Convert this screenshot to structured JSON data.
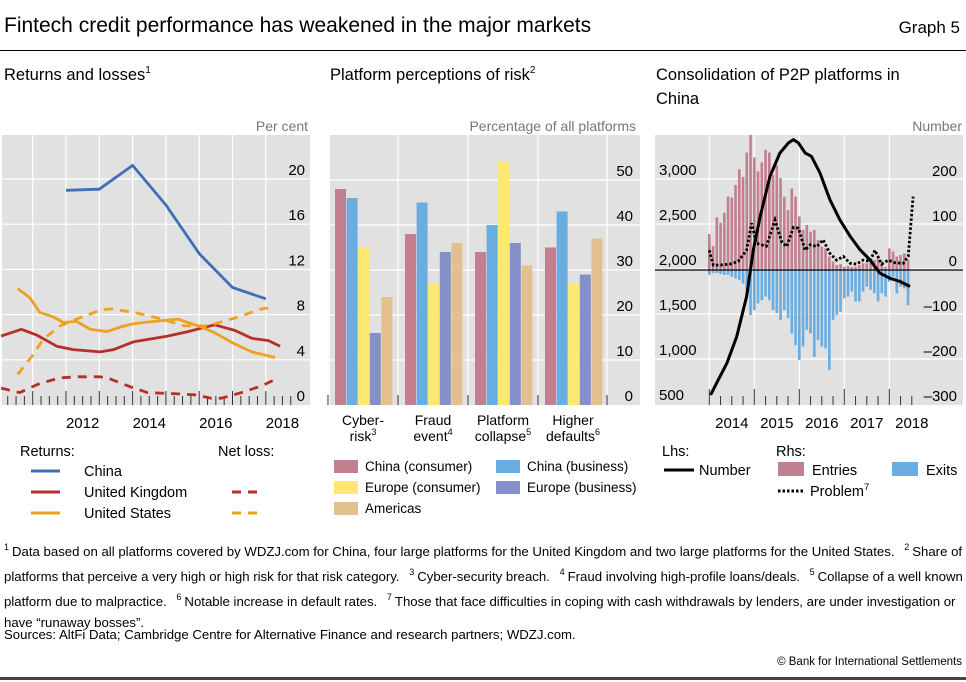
{
  "header": {
    "title": "Fintech credit performance has weakened in the major markets",
    "graph_number": "Graph 5"
  },
  "colors": {
    "background": "#e1e1e1",
    "china": "#3f6fb5",
    "uk": "#b5302a",
    "us": "#f0a020",
    "china_consumer": "#c27f8f",
    "china_business": "#6aade0",
    "europe_consumer": "#ffe870",
    "europe_business": "#8590c8",
    "americas": "#e3c08f",
    "entries": "#c27f8f",
    "exits": "#6aade0",
    "number": "#000000",
    "problem": "#000000"
  },
  "chart_data": [
    {
      "type": "line",
      "title": "Returns and losses",
      "title_note": "1",
      "ylabel": "Per cent",
      "ylim": [
        0,
        24
      ],
      "yticks": [
        "0",
        "4",
        "8",
        "12",
        "16",
        "20"
      ],
      "ytick_values": [
        0,
        4,
        8,
        12,
        16,
        20
      ],
      "xlim": [
        2010,
        2019.3
      ],
      "xticks": [
        "2012",
        "2014",
        "2016",
        "2018"
      ],
      "xtick_values": [
        2012,
        2014,
        2016,
        2018
      ],
      "legend": {
        "returns_heading": "Returns:",
        "net_loss_heading": "Net loss:",
        "entries": [
          "China",
          "United Kingdom",
          "United States"
        ]
      },
      "series": [
        {
          "name": "China",
          "kind": "returns",
          "style": "solid",
          "color_key": "china",
          "x": [
            2012,
            2013,
            2014,
            2015,
            2016,
            2017,
            2018
          ],
          "y": [
            19.0,
            19.1,
            21.2,
            17.7,
            13.4,
            10.4,
            9.4
          ]
        },
        {
          "name": "United Kingdom",
          "kind": "returns",
          "style": "solid",
          "color_key": "uk",
          "x": [
            2010.05,
            2010.66,
            2011.11,
            2011.72,
            2012.22,
            2013.03,
            2013.43,
            2014.04,
            2015.05,
            2015.66,
            2016.46,
            2017.07,
            2017.58,
            2018.08,
            2018.43
          ],
          "y": [
            6.1,
            6.7,
            6.2,
            5.2,
            4.9,
            4.7,
            4.9,
            5.6,
            6.1,
            6.5,
            7.1,
            6.6,
            5.9,
            5.7,
            5.2
          ]
        },
        {
          "name": "United States",
          "kind": "returns",
          "style": "solid",
          "color_key": "us",
          "x": [
            2010.55,
            2010.91,
            2011.21,
            2011.62,
            2011.92,
            2012.32,
            2012.73,
            2013.23,
            2013.64,
            2014.04,
            2014.65,
            2015.35,
            2015.66,
            2016.06,
            2016.46,
            2017.07,
            2017.58,
            2018.28
          ],
          "y": [
            10.3,
            9.5,
            8.2,
            7.8,
            7.3,
            7.4,
            6.7,
            6.5,
            6.9,
            7.2,
            7.4,
            7.6,
            7.3,
            6.9,
            6.4,
            5.4,
            4.7,
            4.2
          ]
        },
        {
          "name": "United Kingdom",
          "kind": "net_loss",
          "style": "dashed",
          "color_key": "uk",
          "x": [
            2010.05,
            2010.61,
            2011.21,
            2011.82,
            2012.32,
            2013.03,
            2013.33,
            2013.94,
            2014.44,
            2015.25,
            2015.86,
            2016.36,
            2016.67,
            2017.27,
            2017.88,
            2018.38
          ],
          "y": [
            1.5,
            1.1,
            1.9,
            2.4,
            2.5,
            2.5,
            2.3,
            1.6,
            1.1,
            1.0,
            0.9,
            0.6,
            0.6,
            1.1,
            1.7,
            2.4
          ]
        },
        {
          "name": "United States",
          "kind": "net_loss",
          "style": "dashed",
          "color_key": "us",
          "x": [
            2010.55,
            2011.0,
            2011.31,
            2011.82,
            2012.32,
            2013.03,
            2013.33,
            2014.04,
            2014.75,
            2015.56,
            2016.26,
            2017.07,
            2017.88,
            2018.28
          ],
          "y": [
            2.7,
            4.4,
            5.8,
            7.0,
            7.6,
            8.4,
            8.5,
            8.2,
            7.7,
            7.0,
            7.0,
            7.7,
            8.5,
            8.7
          ]
        }
      ]
    },
    {
      "type": "bar",
      "title": "Platform perceptions of risk",
      "title_note": "2",
      "ylabel": "Percentage of all platforms",
      "ylim": [
        0,
        60
      ],
      "yticks": [
        "0",
        "10",
        "20",
        "30",
        "40",
        "50"
      ],
      "ytick_values": [
        0,
        10,
        20,
        30,
        40,
        50
      ],
      "categories": [
        {
          "line1": "Cyber-",
          "line2": "risk",
          "note": "3"
        },
        {
          "line1": "Fraud",
          "line2": "event",
          "note": "4"
        },
        {
          "line1": "Platform",
          "line2": "collapse",
          "note": "5"
        },
        {
          "line1": "Higher",
          "line2": "defaults",
          "note": "6"
        }
      ],
      "series": [
        {
          "name": "China (consumer)",
          "color_key": "china_consumer",
          "values": [
            48,
            38,
            34,
            35
          ]
        },
        {
          "name": "China (business)",
          "color_key": "china_business",
          "values": [
            46,
            45,
            40,
            43
          ]
        },
        {
          "name": "Europe (consumer)",
          "color_key": "europe_consumer",
          "values": [
            35,
            27,
            54,
            27
          ]
        },
        {
          "name": "Europe (business)",
          "color_key": "europe_business",
          "values": [
            16,
            34,
            36,
            29
          ]
        },
        {
          "name": "Americas",
          "color_key": "americas",
          "values": [
            24,
            36,
            31,
            37
          ]
        }
      ]
    },
    {
      "type": "bar+line",
      "title": "Consolidation of P2P platforms in",
      "title_line2": "China",
      "ylabel_right": "Number",
      "ylim_left": [
        500,
        3500
      ],
      "yticks_left": [
        "500",
        "1,000",
        "1,500",
        "2,000",
        "2,500",
        "3,000"
      ],
      "ytick_values_left": [
        500,
        1000,
        1500,
        2000,
        2500,
        3000
      ],
      "ylim_right": [
        -300,
        300
      ],
      "yticks_right": [
        "–300",
        "–200",
        "–100",
        "0",
        "100",
        "200"
      ],
      "ytick_values_right": [
        -300,
        -200,
        -100,
        0,
        100,
        200
      ],
      "xticks": [
        "2014",
        "2015",
        "2016",
        "2017",
        "2018"
      ],
      "xtick_values": [
        2014,
        2015,
        2016,
        2017,
        2018
      ],
      "legend": {
        "lhs_heading": "Lhs:",
        "rhs_heading": "Rhs:",
        "number": "Number",
        "entries": "Entries",
        "exits": "Exits",
        "problem": "Problem",
        "problem_note": "7"
      },
      "monthly_start": 2014.0,
      "entries": [
        80,
        53,
        117,
        105,
        127,
        163,
        161,
        189,
        224,
        207,
        261,
        300,
        250,
        219,
        239,
        267,
        261,
        211,
        233,
        204,
        163,
        133,
        181,
        163,
        119,
        89,
        100,
        85,
        89,
        67,
        52,
        48,
        30,
        19,
        11,
        13,
        7,
        9,
        7,
        7,
        11,
        15,
        15,
        16,
        22,
        26,
        15,
        7,
        48,
        41,
        30,
        33,
        37,
        22
      ],
      "exits": [
        -11,
        -7,
        -7,
        -9,
        -11,
        -11,
        -15,
        -19,
        -22,
        -30,
        -44,
        -100,
        -89,
        -74,
        -67,
        -59,
        -67,
        -89,
        -96,
        -111,
        -89,
        -107,
        -141,
        -167,
        -200,
        -170,
        -133,
        -141,
        -193,
        -156,
        -170,
        -174,
        -222,
        -111,
        -100,
        -93,
        -63,
        -59,
        -48,
        -70,
        -70,
        -48,
        -37,
        -44,
        -52,
        -70,
        -52,
        -59,
        -26,
        -15,
        -52,
        -37,
        -41,
        -78
      ],
      "problem": {
        "x": [
          2014.0,
          2014.09,
          2014.24,
          2014.46,
          2014.64,
          2014.83,
          2014.94,
          2015.05,
          2015.27,
          2015.46,
          2015.61,
          2015.72,
          2015.87,
          2015.98,
          2016.13,
          2016.24,
          2016.39,
          2016.53,
          2016.68,
          2016.83,
          2016.98,
          2017.13,
          2017.27,
          2017.42,
          2017.57,
          2017.68,
          2017.83,
          2017.98,
          2018.13,
          2018.31,
          2018.42,
          2018.53
        ],
        "y": [
          44,
          11,
          11,
          13,
          19,
          44,
          104,
          59,
          53,
          111,
          63,
          52,
          95,
          93,
          44,
          56,
          52,
          67,
          37,
          22,
          30,
          15,
          13,
          22,
          19,
          44,
          13,
          22,
          16,
          15,
          30,
          163
        ]
      },
      "number": {
        "x": [
          2014.03,
          2014.16,
          2014.39,
          2014.61,
          2014.83,
          2014.98,
          2015.13,
          2015.35,
          2015.57,
          2015.76,
          2015.87,
          2015.98,
          2016.13,
          2016.27,
          2016.46,
          2016.68,
          2016.9,
          2017.13,
          2017.35,
          2017.57,
          2017.79,
          2018.01,
          2018.24,
          2018.46
        ],
        "y": [
          600,
          730,
          953,
          1249,
          1694,
          2214,
          2585,
          3030,
          3289,
          3401,
          3438,
          3401,
          3289,
          3252,
          3067,
          2770,
          2548,
          2362,
          2214,
          2102,
          1954,
          1898,
          1861,
          1806
        ]
      }
    }
  ],
  "footnotes": [
    {
      "num": "1",
      "text": "Data based on all platforms covered by WDZJ.com for China, four large platforms for the United Kingdom and two large platforms for the United States."
    },
    {
      "num": "2",
      "text": "Share of platforms that perceive a very high or high risk for that risk category."
    },
    {
      "num": "3",
      "text": "Cyber-security breach."
    },
    {
      "num": "4",
      "text": "Fraud involving high-profile loans/deals."
    },
    {
      "num": "5",
      "text": "Collapse of a well known platform due to malpractice."
    },
    {
      "num": "6",
      "text": "Notable increase in default rates."
    },
    {
      "num": "7",
      "text": "Those that face difficulties in coping with cash withdrawals by lenders, are under investigation or have “runaway bosses”."
    }
  ],
  "sources": "Sources: AltFi Data; Cambridge Centre for Alternative Finance and research partners; WDZJ.com.",
  "copyright": "© Bank for International Settlements"
}
